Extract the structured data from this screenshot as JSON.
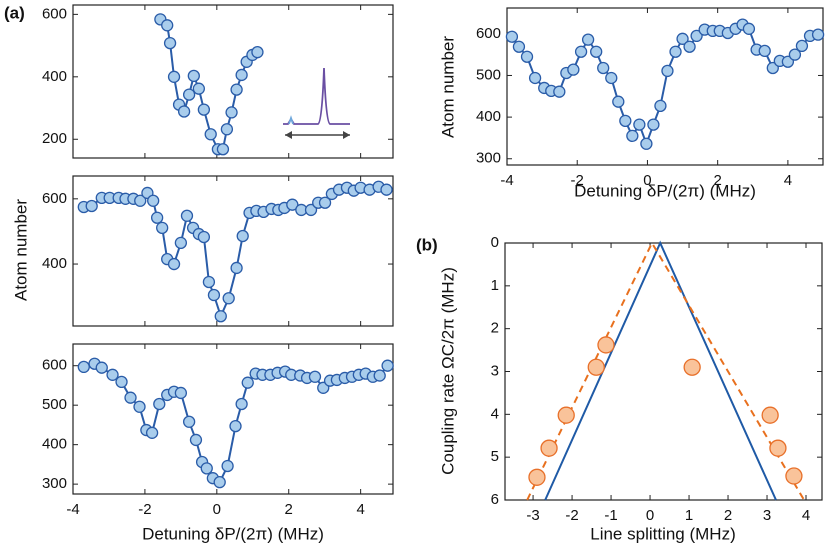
{
  "chart_data": [
    {
      "type": "scatter",
      "label": "(a)",
      "xlim": [
        -4,
        4.9
      ],
      "ylim": [
        140,
        630
      ],
      "yticks": [
        200,
        400,
        600
      ],
      "color": "#2a5ca8",
      "marker_fill": "#a9cdec",
      "x": [
        -1.57,
        -1.38,
        -1.3,
        -1.19,
        -1.05,
        -0.91,
        -0.77,
        -0.64,
        -0.5,
        -0.36,
        -0.17,
        0.03,
        0.17,
        0.28,
        0.41,
        0.55,
        0.69,
        0.83,
        0.99,
        1.13
      ],
      "values": [
        584,
        565,
        508,
        400,
        311,
        289,
        343,
        403,
        362,
        295,
        216,
        168,
        168,
        232,
        286,
        359,
        406,
        448,
        470,
        479
      ]
    },
    {
      "type": "scatter",
      "xlim": [
        -4,
        4.9
      ],
      "ylim": [
        210,
        670
      ],
      "yticks": [
        400,
        600
      ],
      "y_label": "Atom number",
      "color": "#2a5ca8",
      "marker_fill": "#a9cdec",
      "x": [
        -3.7,
        -3.48,
        -3.2,
        -2.98,
        -2.73,
        -2.54,
        -2.32,
        -2.13,
        -1.93,
        -1.77,
        -1.66,
        -1.52,
        -1.38,
        -1.19,
        -1.0,
        -0.83,
        -0.66,
        -0.5,
        -0.36,
        -0.22,
        -0.08,
        0.11,
        0.33,
        0.55,
        0.72,
        0.91,
        1.1,
        1.3,
        1.52,
        1.71,
        1.88,
        2.1,
        2.35,
        2.62,
        2.82,
        3.01,
        3.2,
        3.4,
        3.62,
        3.81,
        4.0,
        4.25,
        4.5,
        4.72
      ],
      "values": [
        575,
        578,
        603,
        603,
        603,
        600,
        600,
        594,
        618,
        594,
        542,
        511,
        415,
        400,
        465,
        548,
        511,
        492,
        483,
        345,
        305,
        240,
        295,
        388,
        486,
        557,
        563,
        560,
        569,
        566,
        572,
        582,
        566,
        566,
        588,
        588,
        615,
        628,
        634,
        625,
        634,
        628,
        637,
        628
      ]
    },
    {
      "type": "scatter",
      "xlim": [
        -4,
        4.9
      ],
      "ylim": [
        275,
        655
      ],
      "yticks": [
        300,
        400,
        500,
        600
      ],
      "xticks": [
        -4,
        -2,
        0,
        2,
        4
      ],
      "x_label": "Detuning δP/(2π) (MHz)",
      "color": "#2a5ca8",
      "marker_fill": "#a9cdec",
      "x": [
        -3.7,
        -3.4,
        -3.2,
        -2.9,
        -2.65,
        -2.4,
        -2.15,
        -1.96,
        -1.8,
        -1.6,
        -1.38,
        -1.19,
        -1.0,
        -0.77,
        -0.58,
        -0.41,
        -0.28,
        -0.11,
        0.08,
        0.3,
        0.52,
        0.69,
        0.86,
        1.08,
        1.27,
        1.49,
        1.69,
        1.9,
        2.07,
        2.32,
        2.51,
        2.73,
        2.96,
        3.15,
        3.34,
        3.56,
        3.76,
        3.95,
        4.14,
        4.34,
        4.53,
        4.75
      ],
      "values": [
        597,
        605,
        595,
        577,
        559,
        519,
        496,
        437,
        430,
        503,
        526,
        534,
        531,
        458,
        412,
        356,
        340,
        315,
        305,
        346,
        447,
        503,
        557,
        580,
        577,
        577,
        582,
        585,
        577,
        575,
        569,
        572,
        544,
        562,
        564,
        569,
        572,
        577,
        580,
        572,
        575,
        600
      ]
    },
    {
      "type": "scatter",
      "xlim": [
        -4,
        5
      ],
      "ylim": [
        285,
        662
      ],
      "yticks": [
        300,
        400,
        500,
        600
      ],
      "xticks": [
        -4,
        -2,
        0,
        2,
        4
      ],
      "x_label": "Detuning δP/(2π) (MHz)",
      "y_label": "Atom number",
      "color": "#2a5ca8",
      "marker_fill": "#a9cdec",
      "x": [
        -3.86,
        -3.66,
        -3.43,
        -3.2,
        -2.94,
        -2.74,
        -2.51,
        -2.31,
        -2.11,
        -1.89,
        -1.69,
        -1.46,
        -1.26,
        -1.03,
        -0.83,
        -0.63,
        -0.43,
        -0.23,
        -0.03,
        0.17,
        0.37,
        0.57,
        0.8,
        1.0,
        1.2,
        1.4,
        1.63,
        1.86,
        2.06,
        2.29,
        2.51,
        2.71,
        2.89,
        3.11,
        3.34,
        3.57,
        3.77,
        4.0,
        4.2,
        4.4,
        4.63,
        4.86
      ],
      "values": [
        593,
        569,
        545,
        494,
        470,
        463,
        461,
        506,
        514,
        557,
        586,
        557,
        518,
        494,
        437,
        391,
        355,
        382,
        336,
        382,
        427,
        511,
        557,
        588,
        569,
        595,
        610,
        607,
        607,
        602,
        612,
        622,
        612,
        562,
        559,
        518,
        535,
        533,
        550,
        571,
        595,
        598
      ]
    },
    {
      "type": "scatter",
      "label": "(b)",
      "xlim": [
        -3.72,
        4.41
      ],
      "ylim": [
        6,
        0
      ],
      "xticks": [
        -3,
        -2,
        -1,
        0,
        1,
        2,
        3,
        4
      ],
      "yticks": [
        0,
        1,
        2,
        3,
        4,
        5,
        6
      ],
      "x_label": "Line splitting (MHz)",
      "y_label": "Coupling rate ΩC/2π (MHz)",
      "series": [
        {
          "mode": "line",
          "color": "#1f5aa6",
          "x": [
            -2.69,
            0.26,
            3.23
          ],
          "values": [
            6,
            0,
            6
          ]
        },
        {
          "mode": "line",
          "dash": true,
          "color": "#e8701e",
          "x": [
            -3.15,
            0.05,
            3.95
          ],
          "values": [
            6,
            0,
            6
          ]
        },
        {
          "mode": "markers",
          "color": "#e8702a",
          "marker_fill": "#f9c39a",
          "x": [
            -2.9,
            -2.59,
            -2.15,
            -1.38,
            -1.13,
            1.08,
            3.08,
            3.28,
            3.69
          ],
          "values": [
            5.47,
            4.79,
            4.02,
            2.9,
            2.38,
            2.9,
            4.02,
            4.79,
            5.44
          ]
        }
      ]
    }
  ]
}
